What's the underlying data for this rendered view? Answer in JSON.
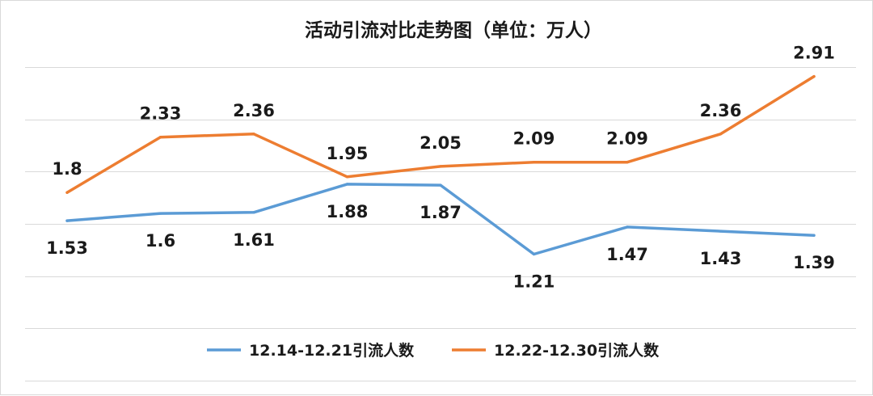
{
  "chart_data": {
    "type": "line",
    "title": "活动引流对比走势图（单位：万人）",
    "categories": [
      "",
      "",
      "",
      "",
      "",
      "",
      "",
      "",
      ""
    ],
    "series": [
      {
        "name": "12.14-12.21引流人数",
        "color": "#5b9bd5",
        "values": [
          1.53,
          1.6,
          1.61,
          1.88,
          1.87,
          1.21,
          1.47,
          1.43,
          1.39
        ],
        "labels": [
          "1.53",
          "1.6",
          "1.61",
          "1.88",
          "1.87",
          "1.21",
          "1.47",
          "1.43",
          "1.39"
        ],
        "label_position": "below"
      },
      {
        "name": "12.22-12.30引流人数",
        "color": "#ed7d31",
        "values": [
          1.8,
          2.33,
          2.36,
          1.95,
          2.05,
          2.09,
          2.09,
          2.36,
          2.91
        ],
        "labels": [
          "1.8",
          "2.33",
          "2.36",
          "1.95",
          "2.05",
          "2.09",
          "2.09",
          "2.36",
          "2.91"
        ],
        "label_position": "above"
      }
    ],
    "ylim": [
      0,
      3
    ],
    "y_gridline_step": 0.5,
    "grid": true,
    "y_axis_labels_shown": false,
    "legend_position": "bottom"
  }
}
